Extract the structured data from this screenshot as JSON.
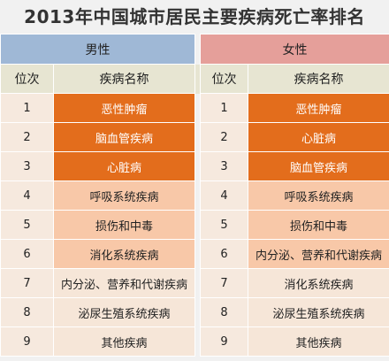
{
  "title": "2013年中国城市居民主要疾病死亡率排名",
  "groups": {
    "male": "男性",
    "female": "女性"
  },
  "headers": {
    "rank": "位次",
    "disease": "疾病名称"
  },
  "rows": [
    {
      "rank": "1",
      "male": "恶性肿瘤",
      "female": "恶性肿瘤"
    },
    {
      "rank": "2",
      "male": "脑血管疾病",
      "female": "心脏病"
    },
    {
      "rank": "3",
      "male": "心脏病",
      "female": "脑血管疾病"
    },
    {
      "rank": "4",
      "male": "呼吸系统疾病",
      "female": "呼吸系统疾病"
    },
    {
      "rank": "5",
      "male": "损伤和中毒",
      "female": "损伤和中毒"
    },
    {
      "rank": "6",
      "male": "消化系统疾病",
      "female": "内分泌、营养和代谢疾病"
    },
    {
      "rank": "7",
      "male": "内分泌、营养和代谢疾病",
      "female": "消化系统疾病"
    },
    {
      "rank": "8",
      "male": "泌尿生殖系统疾病",
      "female": "泌尿生殖系统疾病"
    },
    {
      "rank": "9",
      "male": "其他疾病",
      "female": "其他疾病"
    }
  ],
  "colors": {
    "top3": "#e36d1c",
    "ranks4to6": "#f8c8a8",
    "ranks7to9": "#f6e6d8",
    "male_header": "#9fb8d6",
    "female_header": "#e59f9a"
  }
}
